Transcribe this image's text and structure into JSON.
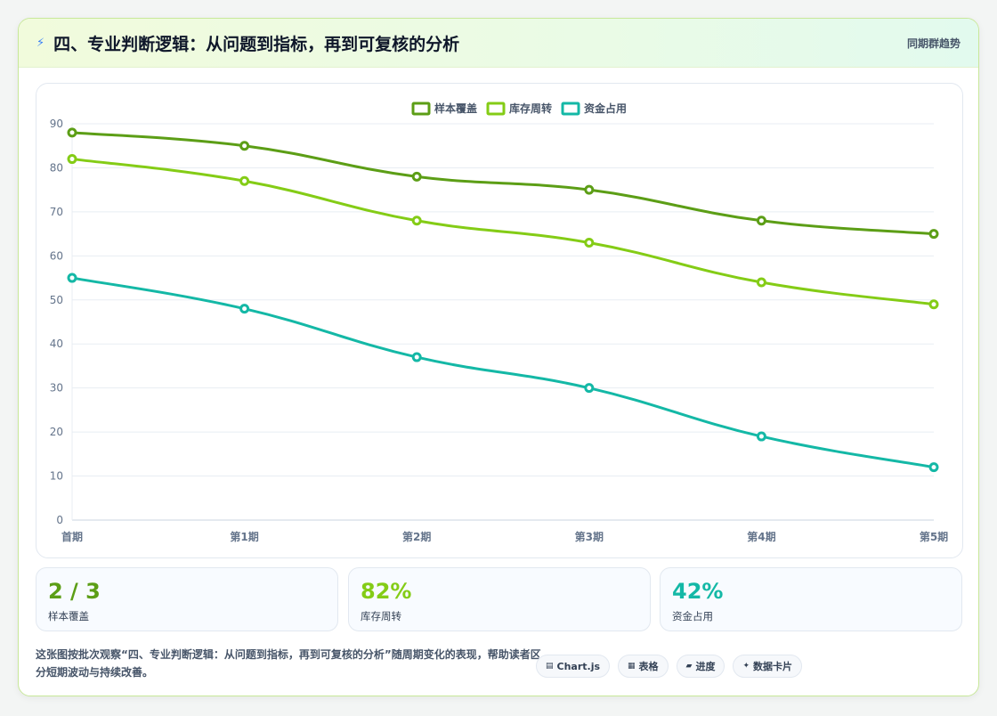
{
  "header": {
    "title": "四、专业判断逻辑：从问题到指标，再到可复核的分析",
    "link": "同期群趋势",
    "icon": "lightning-icon"
  },
  "chart_data": {
    "type": "line",
    "categories": [
      "首期",
      "第1期",
      "第2期",
      "第3期",
      "第4期",
      "第5期"
    ],
    "series": [
      {
        "name": "样本覆盖",
        "color": "#5c9e16",
        "values": [
          88,
          85,
          78,
          75,
          68,
          65
        ]
      },
      {
        "name": "库存周转",
        "color": "#84cc16",
        "values": [
          82,
          77,
          68,
          63,
          54,
          49
        ]
      },
      {
        "name": "资金占用",
        "color": "#14b8a6",
        "values": [
          55,
          48,
          37,
          30,
          19,
          12
        ]
      }
    ],
    "ylim": [
      0,
      90
    ],
    "yticks": [
      0,
      10,
      20,
      30,
      40,
      50,
      60,
      70,
      80,
      90
    ],
    "grid": true,
    "legend": "top-center"
  },
  "kpis": [
    {
      "value": "2 / 3",
      "label": "样本覆盖",
      "color": "#5c9e16"
    },
    {
      "value": "82%",
      "label": "库存周转",
      "color": "#84cc16"
    },
    {
      "value": "42%",
      "label": "资金占用",
      "color": "#14b8a6"
    }
  ],
  "footer": {
    "description": "这张图按批次观察“四、专业判断逻辑：从问题到指标，再到可复核的分析”随周期变化的表现，帮助读者区分短期波动与持续改善。",
    "chips": [
      {
        "icon": "chart-icon",
        "glyph": "▤",
        "label": "Chart.js"
      },
      {
        "icon": "table-icon",
        "glyph": "▦",
        "label": "表格"
      },
      {
        "icon": "progress-icon",
        "glyph": "▰",
        "label": "进度"
      },
      {
        "icon": "sparkle-icon",
        "glyph": "✦",
        "label": "数据卡片"
      }
    ]
  }
}
